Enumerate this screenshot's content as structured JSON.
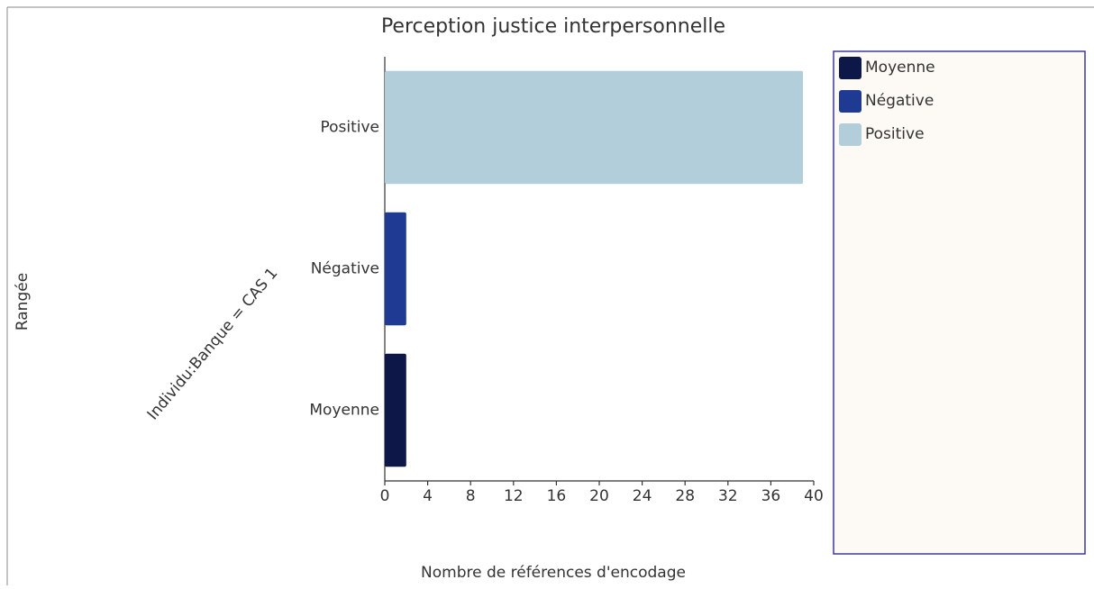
{
  "chart_data": {
    "type": "hbar",
    "title": "Perception justice interpersonnelle",
    "y_axis_label": "Rangée",
    "group_label": "Individu:Banque = CAS 1",
    "x_axis_label": "Nombre de références d'encodage",
    "categories": [
      "Moyenne",
      "Négative",
      "Positive"
    ],
    "values": [
      2,
      2,
      39
    ],
    "colors": [
      "#0e1848",
      "#1f3a93",
      "#b3cedb"
    ],
    "xlim": [
      0,
      40
    ],
    "xticks": [
      0,
      4,
      8,
      12,
      16,
      20,
      24,
      28,
      32,
      36,
      40
    ],
    "legend": "right"
  }
}
